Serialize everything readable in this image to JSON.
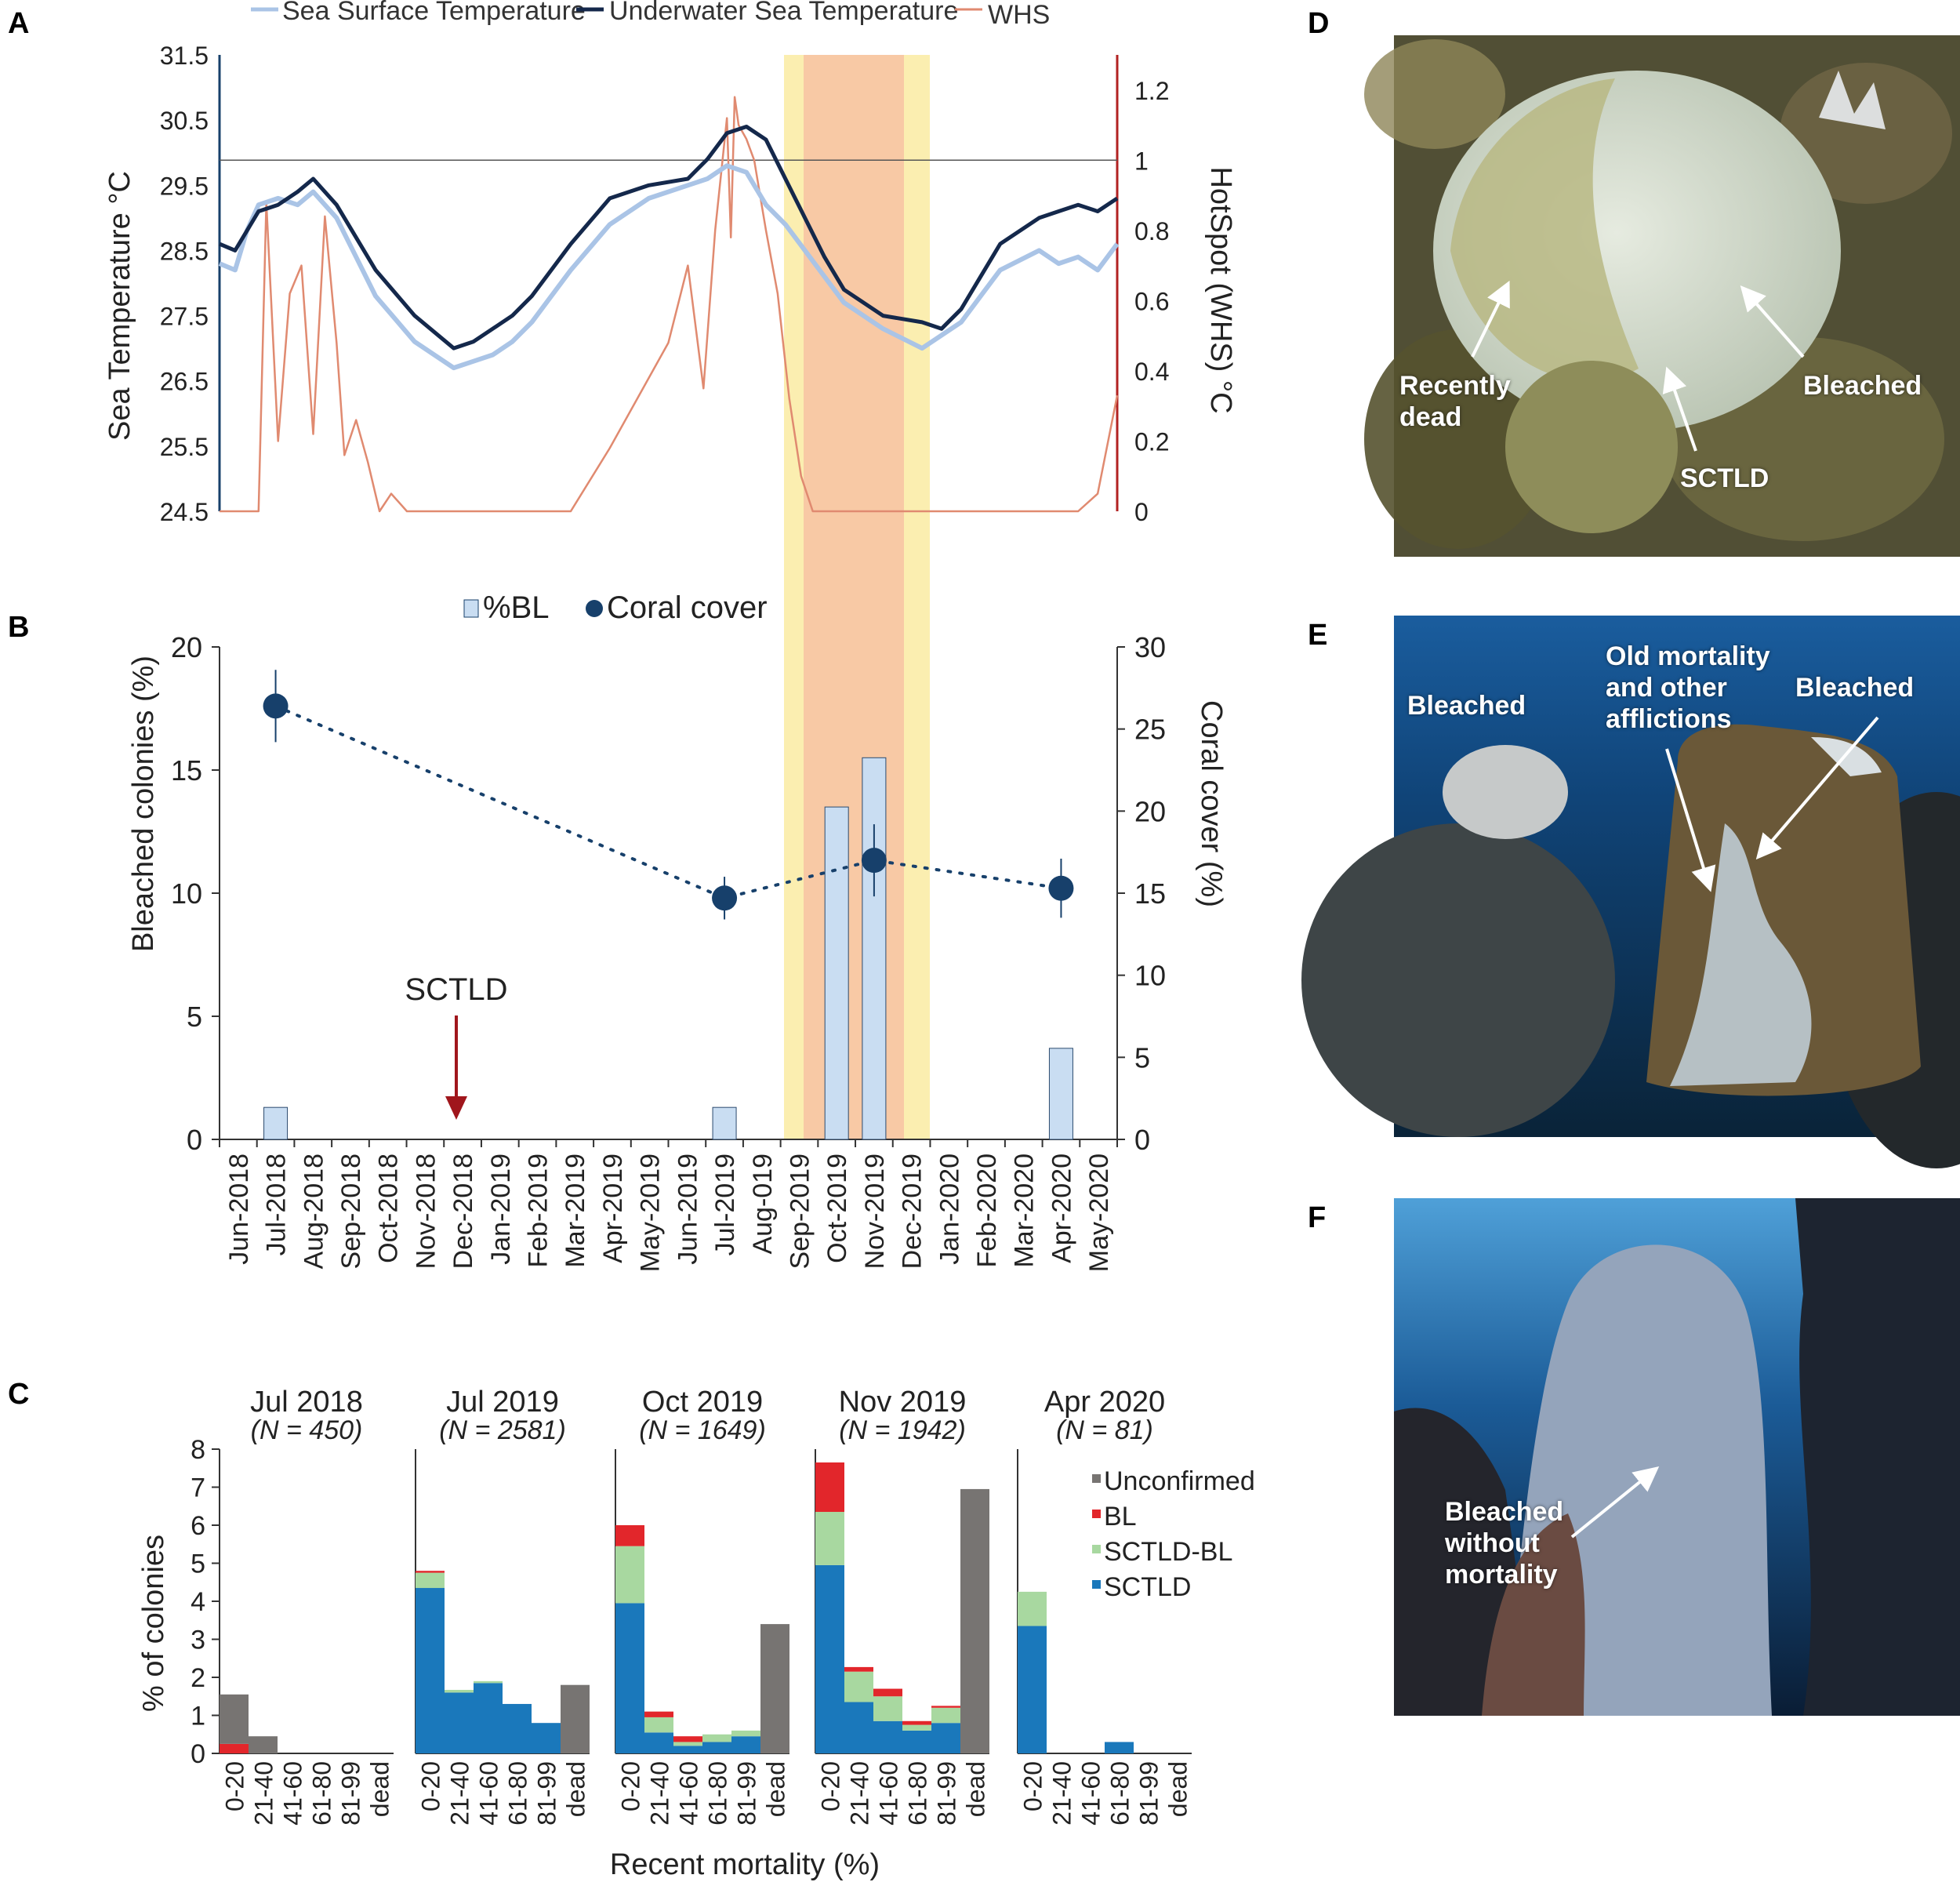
{
  "panels": {
    "A": "A",
    "B": "B",
    "C": "C",
    "D": "D",
    "E": "E",
    "F": "F"
  },
  "colors": {
    "sst": "#aac4e6",
    "underwater": "#14284b",
    "whs": "#e08a70",
    "whs_axis": "#b22222",
    "bar_bl": "#c9ddf2",
    "coral": "#17406b",
    "arrow": "#a0161c",
    "band_yellow": "#fbeeb0",
    "band_orange": "#f8c9a5",
    "unconfirmed": "#777472",
    "bl": "#e2262b",
    "sctld_bl": "#a8d8a0",
    "sctld": "#1a78bb"
  },
  "chart_data": [
    {
      "id": "A",
      "type": "line",
      "legend": [
        "Sea Surface Temperature",
        "Underwater Sea Temperature",
        "WHS"
      ],
      "ylabel": "Sea Temperature °C",
      "ylabel_right": "HotSpot (WHS) °C",
      "ylim": [
        24.5,
        31.5
      ],
      "yticks": [
        "31.5",
        "30.5",
        "29.5",
        "28.5",
        "27.5",
        "26.5",
        "25.5",
        "24.5"
      ],
      "ylim_right": [
        0,
        1.3
      ],
      "yticks_right": [
        "1.2",
        "1",
        "0.8",
        "0.6",
        "0.4",
        "0.2",
        "0"
      ],
      "threshold_whs": 1,
      "x_range_months": [
        0,
        23
      ],
      "series": [
        {
          "name": "Sea Surface Temperature",
          "x": [
            0,
            0.4,
            0.7,
            1,
            1.5,
            2,
            2.4,
            3,
            3.5,
            4,
            5,
            6,
            6.5,
            7,
            7.5,
            8,
            9,
            10,
            11,
            12,
            12.5,
            13,
            13.5,
            14,
            14.5,
            15,
            15.5,
            16,
            17,
            18,
            19,
            19.5,
            20,
            21,
            21.5,
            22,
            22.5,
            23
          ],
          "y": [
            28.3,
            28.2,
            28.8,
            29.2,
            29.3,
            29.2,
            29.4,
            29.0,
            28.4,
            27.8,
            27.1,
            26.7,
            26.8,
            26.9,
            27.1,
            27.4,
            28.2,
            28.9,
            29.3,
            29.5,
            29.6,
            29.8,
            29.7,
            29.2,
            28.9,
            28.5,
            28.1,
            27.7,
            27.3,
            27.0,
            27.4,
            27.8,
            28.2,
            28.5,
            28.3,
            28.4,
            28.2,
            28.6
          ]
        },
        {
          "name": "Underwater Sea Temperature",
          "x": [
            0,
            0.4,
            1,
            1.5,
            2,
            2.4,
            3,
            3.5,
            4,
            5,
            6,
            6.5,
            7,
            7.5,
            8,
            9,
            10,
            11,
            12,
            12.5,
            13,
            13.5,
            14,
            14.5,
            15,
            15.5,
            16,
            17,
            18,
            18.5,
            19,
            19.5,
            20,
            21,
            21.5,
            22,
            22.5,
            23
          ],
          "y": [
            28.6,
            28.5,
            29.1,
            29.2,
            29.4,
            29.6,
            29.2,
            28.7,
            28.2,
            27.5,
            27.0,
            27.1,
            27.3,
            27.5,
            27.8,
            28.6,
            29.3,
            29.5,
            29.6,
            29.9,
            30.3,
            30.4,
            30.2,
            29.6,
            29.0,
            28.4,
            27.9,
            27.5,
            27.4,
            27.3,
            27.6,
            28.1,
            28.6,
            29.0,
            29.1,
            29.2,
            29.1,
            29.3
          ]
        },
        {
          "name": "WHS",
          "x": [
            0,
            0.5,
            1,
            1.2,
            1.5,
            1.8,
            2.1,
            2.4,
            2.7,
            3.0,
            3.2,
            3.5,
            3.8,
            4.1,
            4.4,
            4.8,
            5.2,
            5.6,
            6,
            7,
            8,
            9,
            10,
            11.5,
            12,
            12.4,
            12.7,
            13.0,
            13.1,
            13.2,
            13.3,
            13.5,
            13.7,
            14,
            14.3,
            14.6,
            14.9,
            15.2,
            15.5,
            16,
            17,
            18,
            19,
            20,
            21,
            22,
            22.5,
            23
          ],
          "y": [
            0,
            0,
            0,
            0.88,
            0.2,
            0.62,
            0.7,
            0.22,
            0.84,
            0.48,
            0.16,
            0.26,
            0.14,
            0,
            0.05,
            0,
            0,
            0,
            0,
            0,
            0,
            0,
            0.18,
            0.48,
            0.7,
            0.35,
            0.8,
            1.12,
            0.78,
            1.18,
            1.1,
            1.06,
            1.0,
            0.8,
            0.62,
            0.32,
            0.1,
            0,
            0,
            0,
            0,
            0,
            0,
            0,
            0,
            0,
            0.05,
            0.33
          ]
        }
      ],
      "highlight_yellow": [
        14.5,
        18.0
      ],
      "highlight_orange": [
        15.0,
        17.2
      ]
    },
    {
      "id": "B",
      "type": "bar",
      "legend": [
        "%BL",
        "Coral cover"
      ],
      "ylabel": "Bleached colonies (%)",
      "ylabel_right": "Coral cover (%)",
      "ylim": [
        0,
        20
      ],
      "yticks": [
        "20",
        "15",
        "10",
        "5",
        "0"
      ],
      "ylim_right": [
        0,
        30
      ],
      "yticks_right": [
        "30",
        "25",
        "20",
        "15",
        "10",
        "5",
        "0"
      ],
      "categories": [
        "Jun-2018",
        "Jul-2018",
        "Aug-2018",
        "Sep-2018",
        "Oct-2018",
        "Nov-2018",
        "Dec-2018",
        "Jan-2019",
        "Feb-2019",
        "Mar-2019",
        "Apr-2019",
        "May-2019",
        "Jun-2019",
        "Jul-2019",
        "Aug-019",
        "Sep-2019",
        "Oct-2019",
        "Nov-2019",
        "Dec-2019",
        "Jan-2020",
        "Feb-2020",
        "Mar-2020",
        "Apr-2020",
        "May-2020"
      ],
      "bars": [
        {
          "month": 1,
          "value": 1.3
        },
        {
          "month": 13,
          "value": 1.3
        },
        {
          "month": 16,
          "value": 13.5
        },
        {
          "month": 17,
          "value": 15.5
        },
        {
          "month": 22,
          "value": 3.7
        }
      ],
      "coral_cover": [
        {
          "month": 1,
          "value": 26.4,
          "err": 2.2
        },
        {
          "month": 13,
          "value": 14.7,
          "err": 1.3
        },
        {
          "month": 17,
          "value": 17.0,
          "err": 2.2
        },
        {
          "month": 22,
          "value": 15.3,
          "err": 1.8
        }
      ],
      "annotation": "SCTLD",
      "annotation_month": 6
    },
    {
      "id": "C",
      "type": "bar",
      "stacked": true,
      "ylabel": "% of colonies",
      "xlabel": "Recent mortality (%)",
      "ylim": [
        0,
        8
      ],
      "yticks": [
        "8",
        "7",
        "6",
        "5",
        "4",
        "3",
        "2",
        "1",
        "0"
      ],
      "categories": [
        "0-20",
        "21-40",
        "41-60",
        "61-80",
        "81-99",
        "dead"
      ],
      "legend": [
        "Unconfirmed",
        "BL",
        "SCTLD-BL",
        "SCTLD"
      ],
      "subplots": [
        {
          "title": "Jul 2018",
          "n": "(N = 450)",
          "SCTLD": [
            0,
            0,
            0,
            0,
            0,
            0
          ],
          "SCTLD_BL": [
            0,
            0,
            0,
            0,
            0,
            0
          ],
          "BL": [
            0.25,
            0,
            0,
            0,
            0,
            0
          ],
          "Unconfirmed": [
            1.3,
            0.45,
            0,
            0,
            0,
            0
          ]
        },
        {
          "title": "Jul 2019",
          "n": "(N = 2581)",
          "SCTLD": [
            4.35,
            1.6,
            1.85,
            1.3,
            0.8,
            0
          ],
          "SCTLD_BL": [
            0.4,
            0.07,
            0.05,
            0,
            0,
            0
          ],
          "BL": [
            0.05,
            0,
            0,
            0,
            0,
            0
          ],
          "Unconfirmed": [
            0,
            0,
            0,
            0,
            0,
            1.8
          ]
        },
        {
          "title": "Oct 2019",
          "n": "(N = 1649)",
          "SCTLD": [
            3.95,
            0.55,
            0.2,
            0.3,
            0.45,
            0
          ],
          "SCTLD_BL": [
            1.5,
            0.4,
            0.1,
            0.2,
            0.15,
            0
          ],
          "BL": [
            0.55,
            0.15,
            0.15,
            0,
            0,
            0
          ],
          "Unconfirmed": [
            0,
            0,
            0,
            0,
            0,
            3.4
          ]
        },
        {
          "title": "Nov 2019",
          "n": "(N = 1942)",
          "SCTLD": [
            4.95,
            1.35,
            0.85,
            0.6,
            0.8,
            0
          ],
          "SCTLD_BL": [
            1.4,
            0.8,
            0.65,
            0.15,
            0.4,
            0
          ],
          "BL": [
            1.3,
            0.12,
            0.2,
            0.1,
            0.05,
            0
          ],
          "Unconfirmed": [
            0,
            0,
            0,
            0,
            0,
            6.95
          ]
        },
        {
          "title": "Apr 2020",
          "n": "(N = 81)",
          "SCTLD": [
            3.35,
            0,
            0,
            0.3,
            0,
            0
          ],
          "SCTLD_BL": [
            0.9,
            0,
            0,
            0,
            0,
            0
          ],
          "BL": [
            0,
            0,
            0,
            0,
            0,
            0
          ],
          "Unconfirmed": [
            0,
            0,
            0,
            0,
            0,
            0
          ]
        }
      ]
    }
  ],
  "photos": {
    "D": {
      "labels": [
        "Recently\ndead",
        "SCTLD",
        "Bleached"
      ]
    },
    "E": {
      "labels": [
        "Bleached",
        "Old mortality\nand other\nafflictions",
        "Bleached"
      ]
    },
    "F": {
      "labels": [
        "Bleached\nwithout\nmortality"
      ]
    }
  }
}
